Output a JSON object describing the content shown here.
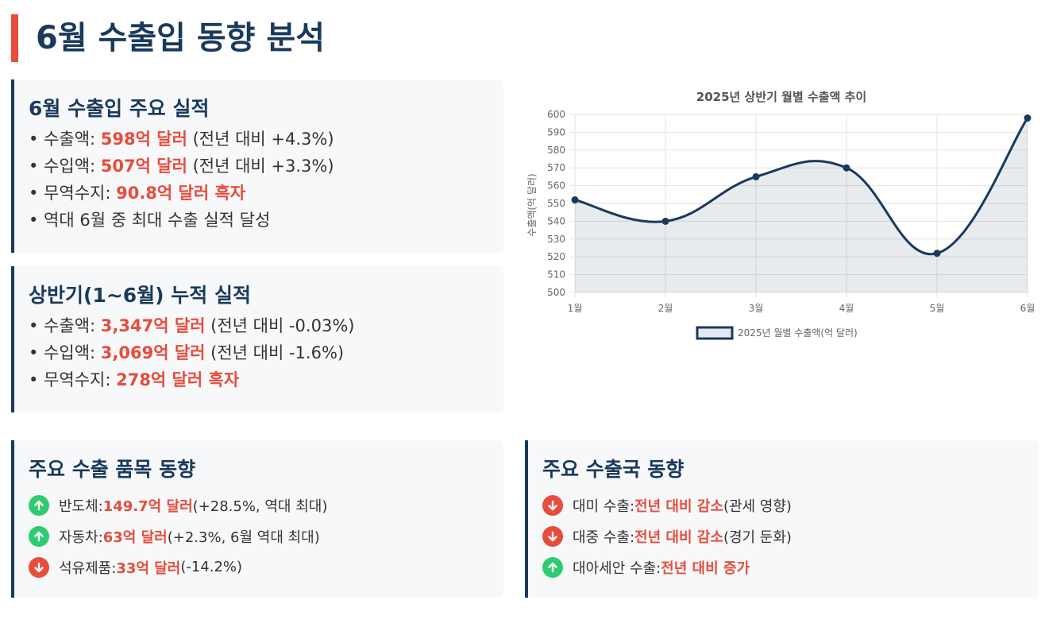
{
  "page": {
    "title": "6월 수출입 동향 분석"
  },
  "june": {
    "heading": "6월 수출입 주요 실적",
    "items": [
      {
        "prefix": "• 수출액: ",
        "value": "598억 달러",
        "suffix": " (전년 대비 +4.3%)"
      },
      {
        "prefix": "• 수입액: ",
        "value": "507억 달러",
        "suffix": " (전년 대비 +3.3%)"
      },
      {
        "prefix": "• 무역수지: ",
        "value": "90.8억 달러 흑자",
        "suffix": ""
      },
      {
        "prefix": "• 역대 6월 중 최대 수출 실적 달성",
        "value": "",
        "suffix": ""
      }
    ]
  },
  "half": {
    "heading": "상반기(1~6월) 누적 실적",
    "items": [
      {
        "prefix": "• 수출액: ",
        "value": "3,347억 달러",
        "suffix": " (전년 대비 -0.03%)"
      },
      {
        "prefix": "• 수입액: ",
        "value": "3,069억 달러",
        "suffix": " (전년 대비 -1.6%)"
      },
      {
        "prefix": "• 무역수지: ",
        "value": "278억 달러 흑자",
        "suffix": ""
      }
    ]
  },
  "items_trend": {
    "heading": "주요 수출 품목 동향",
    "rows": [
      {
        "dir": "up",
        "prefix": "반도체: ",
        "value": "149.7억 달러",
        "suffix": " (+28.5%, 역대 최대)"
      },
      {
        "dir": "up",
        "prefix": "자동차: ",
        "value": "63억 달러",
        "suffix": " (+2.3%, 6월 역대 최대)"
      },
      {
        "dir": "down",
        "prefix": "석유제품: ",
        "value": "33억 달러",
        "suffix": " (-14.2%)"
      }
    ]
  },
  "country_trend": {
    "heading": "주요 수출국 동향",
    "rows": [
      {
        "dir": "down",
        "prefix": "대미 수출: ",
        "value": "전년 대비 감소",
        "suffix": " (관세 영향)"
      },
      {
        "dir": "down",
        "prefix": "대중 수출: ",
        "value": "전년 대비 감소",
        "suffix": " (경기 둔화)"
      },
      {
        "dir": "up",
        "prefix": "대아세안 수출: ",
        "value": "전년 대비 증가",
        "suffix": ""
      }
    ]
  },
  "colors": {
    "accent": "#e74c3c",
    "navy": "#1a3a5c",
    "up": "#2ecc71",
    "down": "#e74c3c",
    "card_bg": "#f7f8fa"
  },
  "chart_data": {
    "type": "line",
    "title": "2025년 상반기 월별 수출액 추이",
    "xlabel": "",
    "ylabel": "수출액(억 달러)",
    "categories": [
      "1월",
      "2월",
      "3월",
      "4월",
      "5월",
      "6월"
    ],
    "series": [
      {
        "name": "2025년 월별 수출액(억 달러)",
        "values": [
          552,
          540,
          565,
          570,
          522,
          598
        ]
      }
    ],
    "ylim": [
      500,
      600
    ],
    "yticks": [
      500,
      510,
      520,
      530,
      540,
      550,
      560,
      570,
      580,
      590,
      600
    ],
    "grid": true,
    "filled": true,
    "legend_position": "bottom"
  }
}
